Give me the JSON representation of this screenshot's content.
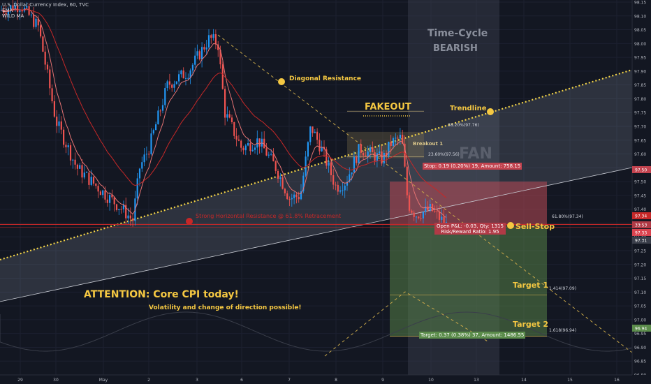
{
  "header": {
    "symbol_line": "U.S. Dollar Currency Index, 60, TVC",
    "indicator_1": "EMA",
    "indicator_2": "WILD MA"
  },
  "annotations": {
    "time_cycle": "Time-Cycle",
    "bearish": "BEARISH",
    "diagonal_resistance": "Diagonal Resistance",
    "fakeout": "FAKEOUT",
    "trendline": "Trendline",
    "breakout": "Breakout 1",
    "fan": "FAN",
    "sell_stop": "Sell-Stop",
    "target_1": "Target 1",
    "target_2": "Target 2",
    "attention": "ATTENTION: Core CPI today!",
    "volatility": "Volatility and change of direction possible!",
    "strong_level": "Strong Horizontal Resistance @ 61.8% Retracement"
  },
  "fib_labels": {
    "fib_382": "38.20%(97.76)",
    "fib_236": "23.60%(97.56)",
    "fib_618": "61.80%(97.34)",
    "fib_1414": "1.414(97.09)",
    "fib_1618": "1.618(96.94)"
  },
  "trade_boxes": {
    "stop": "Stop: 0.19 (0.20%) 19, Amount: 758.15",
    "open_pnl": "Open P&L: -0.03, Qty: 1315",
    "risk_reward": "Risk/Reward Ratio: 1.95",
    "target": "Target: 0.37 (0.38%) 37, Amount: 1486.55"
  },
  "colors": {
    "background": "#131722",
    "up_candle": "#2196f3",
    "down_candle": "#ef5350",
    "ema": "#e57373",
    "wild_ma": "#c62828",
    "trendline": "#f5d547",
    "label_yellow": "#f5c842",
    "stop_zone": "#b94a55",
    "profit_zone": "#5c8a4a",
    "cycle_zone": "#3c414f"
  },
  "chart_data": {
    "type": "candlestick",
    "symbol": "U.S. Dollar Currency Index",
    "timeframe": "60",
    "y_axis": {
      "ylim": [
        96.75,
        98.2
      ],
      "tick_labels": [
        "98.15",
        "98.10",
        "98.05",
        "98.00",
        "97.95",
        "97.90",
        "97.85",
        "97.80",
        "97.75",
        "97.70",
        "97.65",
        "97.60",
        "97.55",
        "97.50",
        "97.45",
        "97.40",
        "97.35",
        "97.30",
        "97.25",
        "97.20",
        "97.15",
        "97.10",
        "97.05",
        "97.00",
        "96.95",
        "96.90",
        "96.85",
        "96.80"
      ],
      "tick_values": [
        98.15,
        98.1,
        98.05,
        98.0,
        97.95,
        97.9,
        97.85,
        97.8,
        97.75,
        97.7,
        97.65,
        97.6,
        97.55,
        97.5,
        97.45,
        97.4,
        97.35,
        97.3,
        97.25,
        97.2,
        97.15,
        97.1,
        97.05,
        97.0,
        96.95,
        96.9,
        96.85,
        96.8
      ]
    },
    "x_axis": {
      "tick_labels": [
        "29",
        "30",
        "May",
        "2",
        "3",
        "6",
        "7",
        "8",
        "9",
        "10",
        "13",
        "14",
        "15",
        "16"
      ]
    },
    "price_tags": [
      {
        "label": "97.50",
        "value": 97.5,
        "kind": "stop"
      },
      {
        "label": "97.34",
        "value": 97.34,
        "kind": "entry"
      },
      {
        "label": "33:53",
        "value": 97.335,
        "kind": "timer"
      },
      {
        "label": "97.33",
        "value": 97.33,
        "kind": "last"
      },
      {
        "label": "97.31",
        "value": 97.31,
        "kind": "ma"
      },
      {
        "label": "96.94",
        "value": 96.94,
        "kind": "target"
      }
    ],
    "key_levels": {
      "horizontal_resistance": 97.34,
      "fib_382": 97.76,
      "fib_236": 97.56,
      "target_1": 97.09,
      "target_2": 96.94,
      "stop": 97.5
    },
    "key_candles": [
      {
        "date": "29",
        "price": 98.12
      },
      {
        "date": "30",
        "price": 97.72
      },
      {
        "date": "May",
        "price": 97.45
      },
      {
        "date": "2",
        "price": 97.4
      },
      {
        "date": "3",
        "price": 98.0
      },
      {
        "date": "6",
        "price": 97.62
      },
      {
        "date": "7",
        "price": 97.45
      },
      {
        "date": "8",
        "price": 97.68
      },
      {
        "date": "9",
        "price": 97.58
      },
      {
        "date": "10",
        "price": 97.36
      }
    ]
  }
}
